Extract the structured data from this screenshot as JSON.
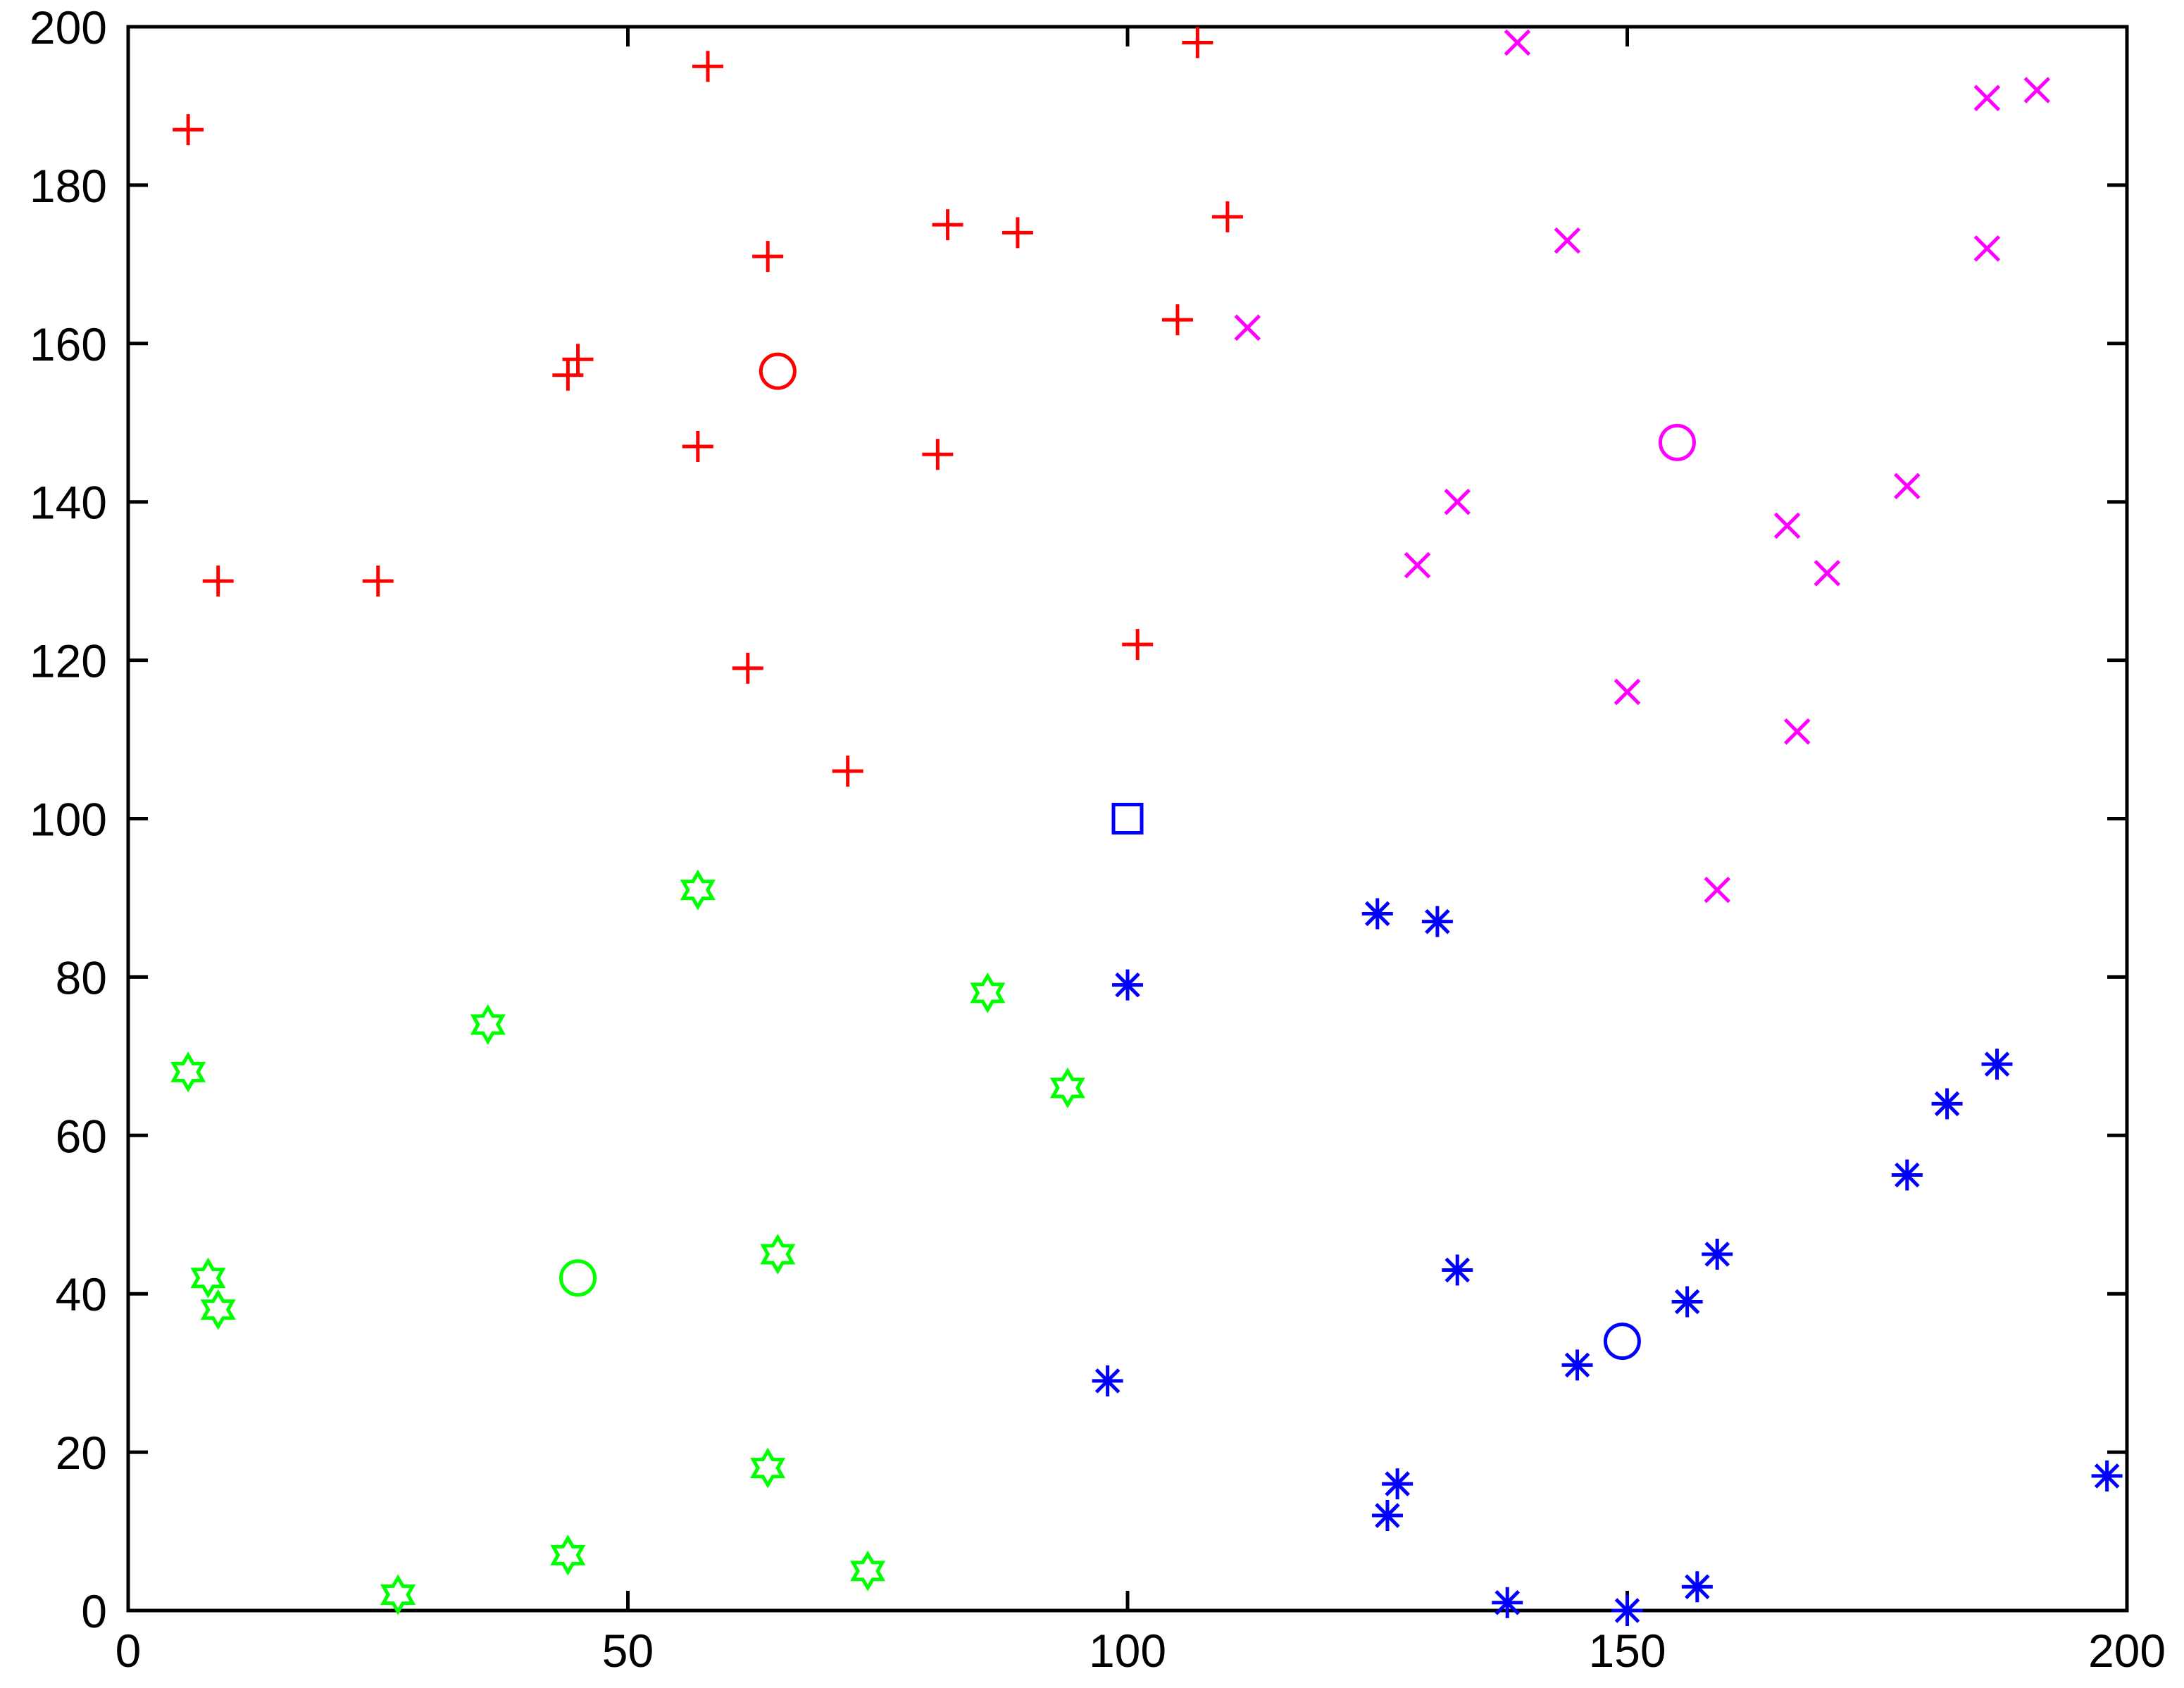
{
  "chart_data": {
    "type": "scatter",
    "title": "",
    "xlabel": "",
    "ylabel": "",
    "xlim": [
      0,
      200
    ],
    "ylim": [
      0,
      200
    ],
    "xticks": [
      0,
      50,
      100,
      150,
      200
    ],
    "yticks": [
      0,
      20,
      40,
      60,
      80,
      100,
      120,
      140,
      160,
      180,
      200
    ],
    "grid": false,
    "legend": "none",
    "series": [
      {
        "color": "#ff0000",
        "marker": "plus",
        "points": [
          [
            6,
            187
          ],
          [
            58,
            195
          ],
          [
            107,
            198
          ],
          [
            9,
            130
          ],
          [
            25,
            130
          ],
          [
            44,
            156
          ],
          [
            45,
            158
          ],
          [
            57,
            147
          ],
          [
            64,
            171
          ],
          [
            62,
            119
          ],
          [
            72,
            106
          ],
          [
            82,
            175
          ],
          [
            89,
            174
          ],
          [
            81,
            146
          ],
          [
            101,
            122
          ],
          [
            105,
            163
          ],
          [
            110,
            176
          ]
        ]
      },
      {
        "color": "#ff00ff",
        "marker": "x",
        "points": [
          [
            139,
            198
          ],
          [
            186,
            191
          ],
          [
            191,
            192
          ],
          [
            144,
            173
          ],
          [
            186,
            172
          ],
          [
            112,
            162
          ],
          [
            133,
            140
          ],
          [
            129,
            132
          ],
          [
            166,
            137
          ],
          [
            170,
            131
          ],
          [
            178,
            142
          ],
          [
            150,
            116
          ],
          [
            167,
            111
          ],
          [
            159,
            91
          ]
        ]
      },
      {
        "color": "#00ff00",
        "marker": "hexagram",
        "points": [
          [
            57,
            91
          ],
          [
            86,
            78
          ],
          [
            36,
            74
          ],
          [
            6,
            68
          ],
          [
            94,
            66
          ],
          [
            8,
            42
          ],
          [
            9,
            38
          ],
          [
            65,
            45
          ],
          [
            64,
            18
          ],
          [
            44,
            7
          ],
          [
            27,
            2
          ],
          [
            74,
            5
          ]
        ]
      },
      {
        "color": "#0000ff",
        "marker": "asterisk",
        "points": [
          [
            100,
            79
          ],
          [
            125,
            88
          ],
          [
            131,
            87
          ],
          [
            187,
            69
          ],
          [
            182,
            64
          ],
          [
            178,
            55
          ],
          [
            159,
            45
          ],
          [
            156,
            39
          ],
          [
            133,
            43
          ],
          [
            145,
            31
          ],
          [
            98,
            29
          ],
          [
            127,
            16
          ],
          [
            126,
            12
          ],
          [
            138,
            1
          ],
          [
            150,
            0
          ],
          [
            157,
            3
          ],
          [
            198,
            17
          ]
        ]
      }
    ],
    "centroids": [
      {
        "color": "#ff0000",
        "marker": "circle",
        "x": 65,
        "y": 156.5
      },
      {
        "color": "#ff00ff",
        "marker": "circle",
        "x": 155,
        "y": 147.5
      },
      {
        "color": "#00ff00",
        "marker": "circle",
        "x": 45,
        "y": 42
      },
      {
        "color": "#0000ff",
        "marker": "circle",
        "x": 149.5,
        "y": 34
      }
    ],
    "special_points": [
      {
        "color": "#0000ff",
        "marker": "square",
        "x": 100,
        "y": 100
      }
    ]
  }
}
